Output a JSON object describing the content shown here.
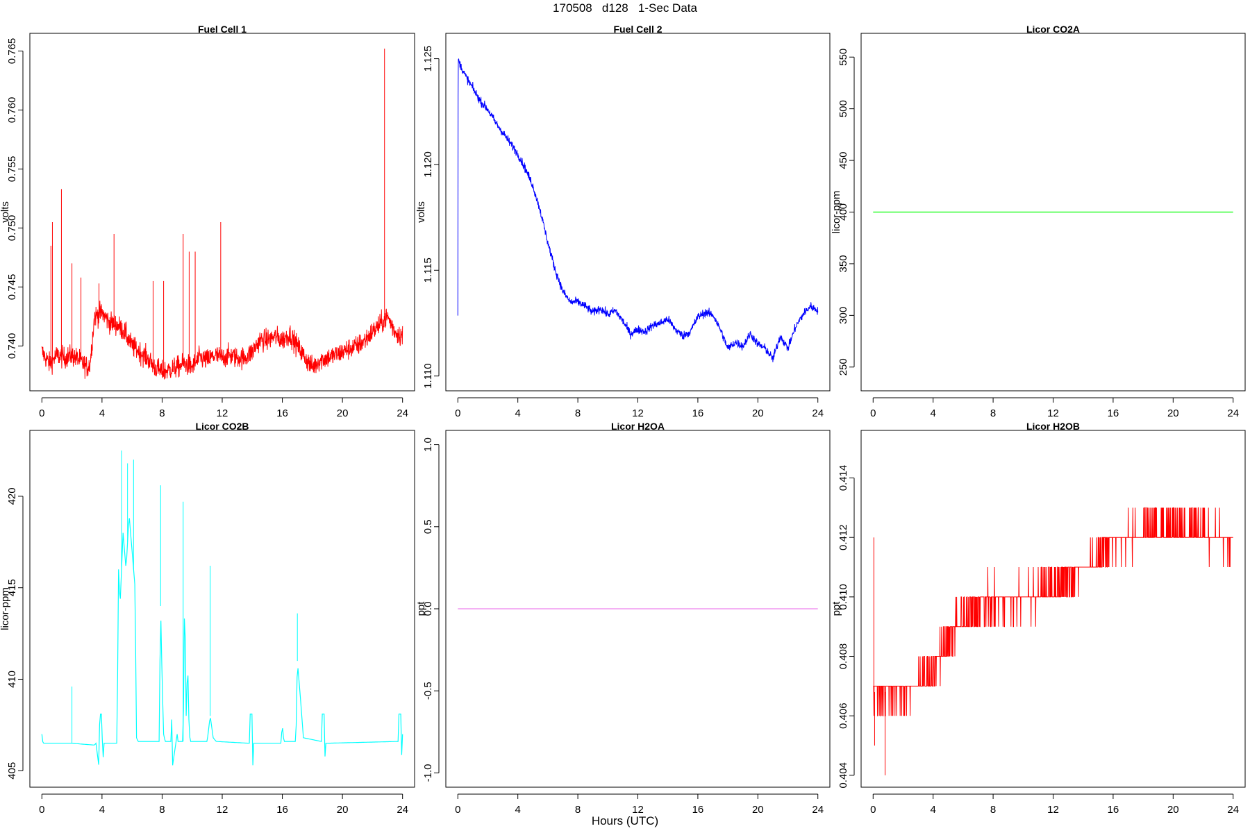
{
  "figure_title": "170508   d128   1-Sec Data",
  "x_axis_label": "Hours (UTC)",
  "colors": {
    "red": "#ff0000",
    "blue": "#0000ff",
    "green": "#00ff00",
    "cyan": "#00ffff",
    "violet": "#ee82ee"
  },
  "chart_data": [
    {
      "type": "line",
      "title": "Fuel Cell 1",
      "xlabel": "",
      "ylabel": "volts",
      "xlim": [
        -0.8,
        24.8
      ],
      "ylim": [
        0.7362,
        0.7665
      ],
      "xticks": [
        0,
        4,
        8,
        12,
        16,
        20,
        24
      ],
      "yticks": [
        0.74,
        0.745,
        0.75,
        0.755,
        0.76,
        0.765
      ],
      "ytick_labels": [
        "0.740",
        "0.745",
        "0.750",
        "0.755",
        "0.760",
        "0.765"
      ],
      "series": [
        {
          "color": "red",
          "x": [
            0,
            0.5,
            1,
            1.5,
            2,
            2.5,
            3,
            3.2,
            3.5,
            4,
            4.5,
            5,
            5.5,
            6,
            6.5,
            7,
            7.5,
            8,
            8.5,
            9,
            9.5,
            10,
            10.5,
            11,
            11.5,
            12,
            12.5,
            13,
            13.5,
            14,
            14.5,
            15,
            15.5,
            16,
            16.5,
            17,
            17.5,
            18,
            18.5,
            19,
            19.5,
            20,
            20.5,
            21,
            21.5,
            22,
            22.5,
            23,
            23.5,
            24
          ],
          "y": [
            0.7395,
            0.7385,
            0.7392,
            0.739,
            0.7392,
            0.7388,
            0.7382,
            0.7384,
            0.7425,
            0.7428,
            0.742,
            0.7418,
            0.7412,
            0.74,
            0.7395,
            0.739,
            0.7382,
            0.7378,
            0.738,
            0.7382,
            0.7385,
            0.7382,
            0.739,
            0.7388,
            0.7392,
            0.739,
            0.7392,
            0.739,
            0.739,
            0.7395,
            0.7405,
            0.7405,
            0.7408,
            0.7405,
            0.741,
            0.74,
            0.739,
            0.7382,
            0.7388,
            0.739,
            0.7392,
            0.7395,
            0.7398,
            0.74,
            0.7405,
            0.7412,
            0.7418,
            0.7425,
            0.7412,
            0.7408
          ],
          "spikes": [
            [
              0.6,
              0.7485
            ],
            [
              0.7,
              0.7505
            ],
            [
              1.3,
              0.7533
            ],
            [
              2.0,
              0.747
            ],
            [
              2.6,
              0.7458
            ],
            [
              3.8,
              0.7453
            ],
            [
              4.8,
              0.7495
            ],
            [
              7.4,
              0.7455
            ],
            [
              8.1,
              0.7455
            ],
            [
              9.4,
              0.7495
            ],
            [
              9.8,
              0.748
            ],
            [
              10.2,
              0.748
            ],
            [
              11.9,
              0.7505
            ],
            [
              22.8,
              0.7652
            ]
          ],
          "noise": 0.0018
        }
      ]
    },
    {
      "type": "line",
      "title": "Fuel Cell 2",
      "xlabel": "",
      "ylabel": "volts",
      "xlim": [
        -0.8,
        24.8
      ],
      "ylim": [
        1.1093,
        1.1262
      ],
      "xticks": [
        0,
        4,
        8,
        12,
        16,
        20,
        24
      ],
      "yticks": [
        1.11,
        1.115,
        1.12,
        1.125
      ],
      "ytick_labels": [
        "1.110",
        "1.115",
        "1.120",
        "1.125"
      ],
      "series": [
        {
          "color": "blue",
          "x": [
            0,
            0.02,
            0.1,
            0.5,
            1,
            1.5,
            2,
            2.5,
            3,
            3.5,
            4,
            4.5,
            5,
            5.5,
            6,
            6.5,
            7,
            7.5,
            8,
            8.5,
            9,
            9.5,
            10,
            10.5,
            11,
            11.5,
            12,
            12.5,
            13,
            13.5,
            14,
            14.5,
            15,
            15.5,
            16,
            16.5,
            17,
            17.5,
            18,
            18.5,
            19,
            19.5,
            20,
            20.5,
            21,
            21.5,
            22,
            22.5,
            23,
            23.5,
            24
          ],
          "y": [
            1.1128,
            1.125,
            1.1248,
            1.1242,
            1.1236,
            1.123,
            1.1226,
            1.122,
            1.1215,
            1.121,
            1.1205,
            1.1198,
            1.119,
            1.1178,
            1.1163,
            1.115,
            1.114,
            1.1135,
            1.1135,
            1.1133,
            1.113,
            1.1132,
            1.1129,
            1.1131,
            1.1126,
            1.112,
            1.1122,
            1.1121,
            1.1124,
            1.1125,
            1.1127,
            1.1122,
            1.1119,
            1.1121,
            1.1128,
            1.113,
            1.1129,
            1.1122,
            1.1113,
            1.1116,
            1.1114,
            1.112,
            1.1115,
            1.1113,
            1.1108,
            1.1119,
            1.1113,
            1.1123,
            1.1129,
            1.1133,
            1.1131
          ],
          "spikes": [],
          "noise": 0.0004
        }
      ]
    },
    {
      "type": "line",
      "title": "Licor CO2A",
      "xlabel": "",
      "ylabel": "licor-ppm",
      "xlim": [
        -0.8,
        24.8
      ],
      "ylim": [
        227,
        573
      ],
      "xticks": [
        0,
        4,
        8,
        12,
        16,
        20,
        24
      ],
      "yticks": [
        250,
        300,
        350,
        400,
        450,
        500,
        550
      ],
      "ytick_labels": [
        "250",
        "300",
        "350",
        "400",
        "450",
        "500",
        "550"
      ],
      "series": [
        {
          "color": "green",
          "x": [
            0,
            24
          ],
          "y": [
            400,
            400
          ],
          "spikes": [],
          "noise": 0
        }
      ]
    },
    {
      "type": "line",
      "title": "Licor CO2B",
      "xlabel": "",
      "ylabel": "licor-ppm",
      "xlim": [
        -0.8,
        24.8
      ],
      "ylim": [
        404.1,
        423.6
      ],
      "xticks": [
        0,
        4,
        8,
        12,
        16,
        20,
        24
      ],
      "yticks": [
        405,
        410,
        415,
        420
      ],
      "ytick_labels": [
        "405",
        "410",
        "415",
        "420"
      ],
      "series": [
        {
          "color": "cyan",
          "x": [
            0,
            0.05,
            0.1,
            2,
            3.5,
            3.6,
            3.8,
            3.85,
            4.0,
            4.05,
            4.1,
            5.0,
            5.1,
            5.2,
            5.4,
            5.6,
            5.8,
            6.0,
            6.2,
            6.3,
            6.4,
            7.8,
            7.9,
            8.0,
            8.1,
            8.2,
            8.6,
            8.65,
            8.7,
            9.0,
            9.05,
            9.4,
            9.5,
            9.6,
            9.7,
            9.8,
            9.9,
            11,
            11.2,
            11.4,
            11.6,
            13.8,
            13.85,
            14.0,
            14.05,
            14.1,
            15.9,
            16.0,
            16.1,
            16.9,
            17.0,
            17.2,
            17.4,
            18.6,
            18.65,
            18.8,
            18.85,
            18.9,
            23.7,
            23.75,
            23.9,
            23.95,
            24.0
          ],
          "y": [
            407.0,
            406.6,
            406.5,
            406.5,
            406.4,
            406.5,
            405.2,
            408.1,
            408.1,
            404.6,
            406.5,
            406.5,
            416.0,
            414.0,
            418.0,
            416.0,
            419.0,
            417.0,
            415.0,
            406.8,
            406.6,
            406.6,
            414.0,
            410.0,
            407.0,
            406.6,
            406.6,
            408.1,
            405.3,
            407.0,
            406.6,
            406.6,
            415.0,
            408.0,
            411.0,
            407.0,
            406.6,
            406.6,
            408.0,
            406.8,
            406.6,
            406.5,
            408.1,
            408.1,
            404.6,
            406.5,
            406.5,
            407.5,
            406.6,
            406.6,
            411.0,
            409.0,
            406.8,
            406.6,
            408.1,
            408.1,
            405.2,
            406.5,
            406.6,
            408.1,
            408.1,
            405.3,
            407.0
          ],
          "spikes": [
            [
              2.0,
              409.6
            ],
            [
              5.3,
              422.5
            ],
            [
              5.7,
              421.8
            ],
            [
              6.1,
              422.0
            ],
            [
              7.9,
              420.6
            ],
            [
              9.4,
              419.7
            ],
            [
              11.2,
              416.2
            ],
            [
              17.0,
              413.6
            ]
          ],
          "noise": 0
        }
      ]
    },
    {
      "type": "line",
      "title": "Licor H2OA",
      "xlabel": "",
      "ylabel": "ppt",
      "xlim": [
        -0.8,
        24.8
      ],
      "ylim": [
        -1.087,
        1.087
      ],
      "xticks": [
        0,
        4,
        8,
        12,
        16,
        20,
        24
      ],
      "yticks": [
        -1.0,
        -0.5,
        0.0,
        0.5,
        1.0
      ],
      "ytick_labels": [
        "-1.0",
        "-0.5",
        "0.0",
        "0.5",
        "1.0"
      ],
      "series": [
        {
          "color": "violet",
          "x": [
            0,
            24
          ],
          "y": [
            0,
            0
          ],
          "spikes": [],
          "noise": 0
        }
      ]
    },
    {
      "type": "line",
      "title": "Licor H2OB",
      "xlabel": "",
      "ylabel": "ppt",
      "xlim": [
        -0.8,
        24.8
      ],
      "ylim": [
        0.4036,
        0.4156
      ],
      "xticks": [
        0,
        4,
        8,
        12,
        16,
        20,
        24
      ],
      "yticks": [
        0.404,
        0.406,
        0.408,
        0.41,
        0.412,
        0.414
      ],
      "ytick_labels": [
        "0.404",
        "0.406",
        "0.408",
        "0.410",
        "0.412",
        "0.414"
      ],
      "series": [
        {
          "color": "red",
          "x": [
            0,
            2,
            4,
            5,
            6,
            8,
            10,
            12,
            14,
            16,
            18,
            20,
            22,
            24
          ],
          "y": [
            0.4068,
            0.4068,
            0.4075,
            0.4085,
            0.4093,
            0.4098,
            0.41,
            0.4103,
            0.411,
            0.4118,
            0.4122,
            0.4124,
            0.4123,
            0.4118
          ],
          "spikes": [
            [
              0.05,
              0.412
            ],
            [
              0.8,
              0.404
            ],
            [
              0.1,
              0.405
            ]
          ],
          "quantum": 0.001,
          "noise": 0.0011
        }
      ]
    }
  ]
}
